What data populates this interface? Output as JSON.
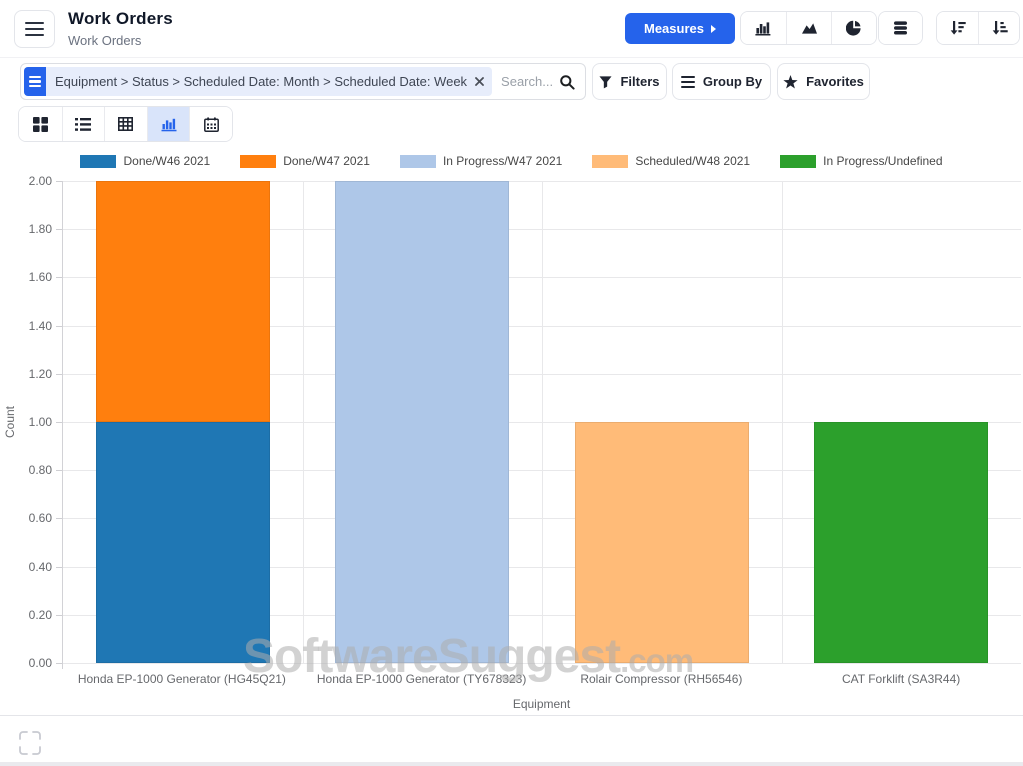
{
  "header": {
    "title": "Work Orders",
    "subtitle": "Work Orders",
    "measures_label": "Measures"
  },
  "search": {
    "facet_label": "Equipment > Status > Scheduled Date: Month > Scheduled Date: Week",
    "placeholder": "Search...",
    "buttons": {
      "filters": "Filters",
      "group_by": "Group By",
      "favorites": "Favorites"
    }
  },
  "view_switcher": {
    "items": [
      "kanban",
      "list",
      "pivot",
      "chart",
      "calendar"
    ],
    "active": "chart"
  },
  "icons": {
    "menu": "hamburger",
    "measures_caret": "caret-right",
    "chart_type_buttons": [
      "bar-chart",
      "area-chart",
      "pie-chart"
    ],
    "data_button": "database-stack",
    "sort_buttons": [
      "sort-descending",
      "sort-ascending"
    ],
    "facet_leading": "group-by-list",
    "facet_remove": "close-x",
    "search": "magnifier",
    "filters": "funnel",
    "group_by": "list-lines",
    "favorites": "star",
    "fullscreen": "expand-corners"
  },
  "colors": {
    "accent_blue": "#2563eb",
    "active_view_bg": "#d9e4fa",
    "facet_bg": "#e7edfb"
  },
  "chart_data": {
    "type": "bar",
    "stacked": true,
    "title": "",
    "xlabel": "Equipment",
    "ylabel": "Count",
    "ylim": [
      0,
      2
    ],
    "ytick_labels": [
      "0.00",
      "0.20",
      "0.40",
      "0.60",
      "0.80",
      "1.00",
      "1.20",
      "1.40",
      "1.60",
      "1.80",
      "2.00"
    ],
    "grid": true,
    "legend_position": "top",
    "categories": [
      "Honda EP-1000 Generator (HG45Q21)",
      "Honda EP-1000 Generator (TY678323)",
      "Rolair Compressor (RH56546)",
      "CAT Forklift (SA3R44)"
    ],
    "series": [
      {
        "name": "Done/W46 2021",
        "color": "#1f77b4",
        "values": [
          1,
          0,
          0,
          0
        ]
      },
      {
        "name": "Done/W47 2021",
        "color": "#ff7f0e",
        "values": [
          1,
          0,
          0,
          0
        ]
      },
      {
        "name": "In Progress/W47 2021",
        "color": "#aec7e8",
        "values": [
          0,
          2,
          0,
          0
        ]
      },
      {
        "name": "Scheduled/W48 2021",
        "color": "#ffbb78",
        "values": [
          0,
          0,
          1,
          0
        ]
      },
      {
        "name": "In Progress/Undefined",
        "color": "#2ca02c",
        "values": [
          0,
          0,
          0,
          1
        ]
      }
    ]
  },
  "watermark": {
    "text": "SoftwareSuggest",
    "suffix": ".com"
  }
}
